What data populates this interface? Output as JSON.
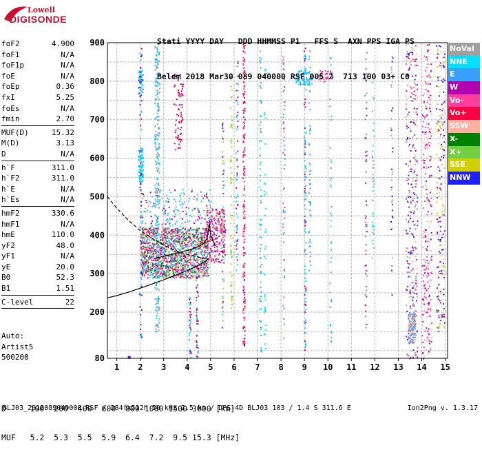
{
  "logo": {
    "line1": "Lowell",
    "line2": "DIGISONDE"
  },
  "header": {
    "labels": "Stati YYYY DAY   DDD HHMMSS P1   FFS S  AXN PPS IGA PS",
    "values": "Belem 2018 Mar30 089 040000 RSF 005 2  713 100 03+ C0"
  },
  "params": [
    [
      {
        "name": "foF2",
        "value": "4.900"
      },
      {
        "name": "foF1",
        "value": "N/A"
      },
      {
        "name": "foF1p",
        "value": "N/A"
      },
      {
        "name": "foE",
        "value": "N/A"
      },
      {
        "name": "foEp",
        "value": "0.36"
      },
      {
        "name": "fxI",
        "value": "5.25"
      },
      {
        "name": "foEs",
        "value": "N/A"
      },
      {
        "name": "fmin",
        "value": "2.70"
      }
    ],
    [
      {
        "name": "MUF(D)",
        "value": "15.32"
      },
      {
        "name": "M(D)",
        "value": "3.13"
      },
      {
        "name": "D",
        "value": "N/A"
      }
    ],
    [
      {
        "name": "h`F",
        "value": "311.0"
      },
      {
        "name": "h`F2",
        "value": "311.0"
      },
      {
        "name": "h`E",
        "value": "N/A"
      },
      {
        "name": "h`Es",
        "value": "N/A"
      }
    ],
    [
      {
        "name": "hmF2",
        "value": "330.6"
      },
      {
        "name": "hmF1",
        "value": "N/A"
      },
      {
        "name": "hmE",
        "value": "110.0"
      },
      {
        "name": "yF2",
        "value": "48.0"
      },
      {
        "name": "yF1",
        "value": "N/A"
      },
      {
        "name": "yE",
        "value": "20.0"
      },
      {
        "name": "B0",
        "value": "52.3"
      },
      {
        "name": "B1",
        "value": "1.51"
      }
    ],
    [
      {
        "name": "C-level",
        "value": "22"
      }
    ]
  ],
  "auto": {
    "line1": "Auto:",
    "line2": "Artist5",
    "line3": "500200"
  },
  "legend": [
    {
      "label": "NoVal",
      "color": "#a0a0a0"
    },
    {
      "label": "NNE",
      "color": "#00e0ff"
    },
    {
      "label": "E",
      "color": "#3aa0ff"
    },
    {
      "label": "W",
      "color": "#b000b0"
    },
    {
      "label": "Vo-",
      "color": "#ff40a0"
    },
    {
      "label": "Vo+",
      "color": "#ff0040"
    },
    {
      "label": "SSW",
      "color": "#ffb0a0"
    },
    {
      "label": "X-",
      "color": "#008000"
    },
    {
      "label": "X+",
      "color": "#70d040"
    },
    {
      "label": "SSE",
      "color": "#d0d000"
    },
    {
      "label": "NNW",
      "color": "#2020ff"
    }
  ],
  "dmuf": {
    "d_row": "D     100  200  400  600  800 1000 1500 3000 [km]",
    "muf_row": "MUF   5.2  5.3  5.5  5.9  6.4  7.2  9.5 15.3 [MHz]"
  },
  "footer": {
    "left": "BLJ03_2018089040000.RSF / 284fx512h 50 kHz 2.5 km / DPS-4D BLJ03 103 / 1.4 S 311.6 E",
    "right": "Ion2Png v. 1.3.17"
  },
  "chart_data": {
    "type": "scatter",
    "title": "",
    "xlabel": "",
    "ylabel": "",
    "xlim": [
      0.6,
      15.1
    ],
    "ylim": [
      80,
      900
    ],
    "xticks": [
      1,
      2,
      3,
      4,
      5,
      6,
      7,
      8,
      9,
      10,
      11,
      12,
      13,
      14,
      15
    ],
    "yticks": [
      80,
      200,
      300,
      400,
      500,
      600,
      700,
      800,
      900
    ],
    "grid": true,
    "legend_placement": "right",
    "traces": [
      {
        "style": "solid",
        "x": [
          0.6,
          1.0,
          1.5,
          2.0,
          2.5,
          3.0,
          3.5,
          4.0,
          4.3,
          4.6,
          4.8,
          4.9
        ],
        "y": [
          237,
          243,
          252,
          262,
          273,
          284,
          296,
          308,
          316,
          326,
          333,
          340
        ]
      },
      {
        "style": "solid",
        "x": [
          2.6,
          3.0,
          3.5,
          4.0,
          4.4,
          4.7,
          4.85,
          4.9,
          4.95,
          5.0,
          5.2
        ],
        "y": [
          340,
          345,
          352,
          360,
          368,
          378,
          392,
          410,
          430,
          400,
          372
        ]
      },
      {
        "style": "dashed",
        "x": [
          0.6,
          1.0,
          1.5,
          2.0,
          2.5,
          3.0,
          3.5,
          4.0,
          4.4,
          4.7,
          4.9
        ],
        "y": [
          500,
          470,
          438,
          412,
          392,
          374,
          360,
          350,
          344,
          340,
          338
        ]
      }
    ],
    "clusters": [
      {
        "xmin": 2.0,
        "xmax": 4.9,
        "ymin": 290,
        "ymax": 420,
        "n": 1700,
        "colors": [
          "#b000b0",
          "#ff0040",
          "#ff40a0",
          "#008000",
          "#70d040",
          "#3aa0ff",
          "#00e0ff",
          "#a0a0a0",
          "#ffb0a0"
        ]
      },
      {
        "xmin": 4.8,
        "xmax": 5.6,
        "ymin": 330,
        "ymax": 470,
        "n": 260,
        "colors": [
          "#b000b0",
          "#ff40a0",
          "#ff0040",
          "#a0a0a0"
        ]
      },
      {
        "xmin": 2.0,
        "xmax": 5.0,
        "ymin": 420,
        "ymax": 520,
        "n": 180,
        "colors": [
          "#3aa0ff",
          "#00e0ff",
          "#a0a0a0",
          "#b000b0"
        ]
      },
      {
        "xmin": 1.9,
        "xmax": 2.1,
        "ymin": 540,
        "ymax": 630,
        "n": 90,
        "colors": [
          "#00e0ff",
          "#3aa0ff"
        ]
      },
      {
        "xmin": 1.9,
        "xmax": 2.1,
        "ymin": 770,
        "ymax": 830,
        "n": 40,
        "colors": [
          "#00e0ff",
          "#3aa0ff",
          "#2020ff"
        ]
      },
      {
        "xmin": 2.6,
        "xmax": 2.8,
        "ymin": 150,
        "ymax": 900,
        "n": 280,
        "colors": [
          "#00e0ff",
          "#3aa0ff",
          "#a0a0a0"
        ]
      },
      {
        "xmin": 3.4,
        "xmax": 3.8,
        "ymin": 620,
        "ymax": 820,
        "n": 70,
        "colors": [
          "#b000b0",
          "#ff0040"
        ]
      },
      {
        "xmin": 8.6,
        "xmax": 9.3,
        "ymin": 790,
        "ymax": 830,
        "n": 80,
        "colors": [
          "#3aa0ff",
          "#00e0ff"
        ]
      },
      {
        "xmin": 9.6,
        "xmax": 10.2,
        "ymin": 800,
        "ymax": 830,
        "n": 40,
        "colors": [
          "#ff40a0",
          "#b000b0",
          "#ffb0a0"
        ]
      },
      {
        "xmin": 13.3,
        "xmax": 13.8,
        "ymin": 80,
        "ymax": 900,
        "n": 330,
        "colors": [
          "#ffb0a0",
          "#b000b0",
          "#a0a0a0",
          "#ff40a0",
          "#2020ff"
        ]
      },
      {
        "xmin": 14.0,
        "xmax": 14.4,
        "ymin": 80,
        "ymax": 900,
        "n": 260,
        "colors": [
          "#ffb0a0",
          "#ff40a0",
          "#b000b0"
        ]
      },
      {
        "xmin": 14.6,
        "xmax": 14.95,
        "ymin": 150,
        "ymax": 900,
        "n": 210,
        "colors": [
          "#d0d000",
          "#ffb0a0",
          "#2020ff",
          "#b000b0"
        ]
      },
      {
        "xmin": 13.4,
        "xmax": 13.7,
        "ymin": 120,
        "ymax": 200,
        "n": 140,
        "colors": [
          "#ffb0a0",
          "#a0a0a0",
          "#3aa0ff"
        ]
      }
    ],
    "columns": [
      {
        "x": 2.0,
        "ymin": 82,
        "ymax": 900,
        "n": 70,
        "colors": [
          "#2020ff",
          "#00e0ff",
          "#b000b0"
        ]
      },
      {
        "x": 6.4,
        "ymin": 100,
        "ymax": 900,
        "n": 170,
        "colors": [
          "#ff0040",
          "#b000b0",
          "#ff40a0"
        ]
      },
      {
        "x": 6.1,
        "ymin": 300,
        "ymax": 860,
        "n": 60,
        "colors": [
          "#3aa0ff",
          "#00e0ff",
          "#b000b0"
        ]
      },
      {
        "x": 7.1,
        "ymin": 80,
        "ymax": 880,
        "n": 80,
        "colors": [
          "#3aa0ff",
          "#00e0ff"
        ]
      },
      {
        "x": 7.3,
        "ymin": 80,
        "ymax": 840,
        "n": 40,
        "colors": [
          "#00e0ff"
        ]
      },
      {
        "x": 8.1,
        "ymin": 120,
        "ymax": 880,
        "n": 60,
        "colors": [
          "#3aa0ff",
          "#ff40a0"
        ]
      },
      {
        "x": 9.0,
        "ymin": 80,
        "ymax": 890,
        "n": 110,
        "colors": [
          "#00e0ff",
          "#3aa0ff",
          "#b000b0"
        ]
      },
      {
        "x": 9.2,
        "ymin": 300,
        "ymax": 880,
        "n": 50,
        "colors": [
          "#3aa0ff"
        ]
      },
      {
        "x": 10.1,
        "ymin": 120,
        "ymax": 870,
        "n": 40,
        "colors": [
          "#00e0ff",
          "#3aa0ff"
        ]
      },
      {
        "x": 11.6,
        "ymin": 160,
        "ymax": 880,
        "n": 60,
        "colors": [
          "#b000b0",
          "#3aa0ff",
          "#ff40a0"
        ]
      },
      {
        "x": 11.9,
        "ymin": 320,
        "ymax": 860,
        "n": 40,
        "colors": [
          "#00e0ff",
          "#a0a0a0"
        ]
      },
      {
        "x": 12.7,
        "ymin": 230,
        "ymax": 880,
        "n": 40,
        "colors": [
          "#2020ff",
          "#a0a0a0"
        ]
      },
      {
        "x": 5.5,
        "ymin": 160,
        "ymax": 700,
        "n": 60,
        "colors": [
          "#d0d000",
          "#00e0ff",
          "#b000b0"
        ]
      },
      {
        "x": 5.85,
        "ymin": 200,
        "ymax": 820,
        "n": 60,
        "colors": [
          "#d0d000",
          "#70d040"
        ]
      },
      {
        "x": 4.1,
        "ymin": 80,
        "ymax": 240,
        "n": 40,
        "colors": [
          "#b000b0",
          "#00e0ff"
        ]
      },
      {
        "x": 4.4,
        "ymin": 80,
        "ymax": 300,
        "n": 40,
        "colors": [
          "#b000b0",
          "#3aa0ff"
        ]
      },
      {
        "x": 1.5,
        "ymin": 82,
        "ymax": 86,
        "n": 18,
        "colors": [
          "#b000b0",
          "#2020ff"
        ]
      }
    ]
  }
}
